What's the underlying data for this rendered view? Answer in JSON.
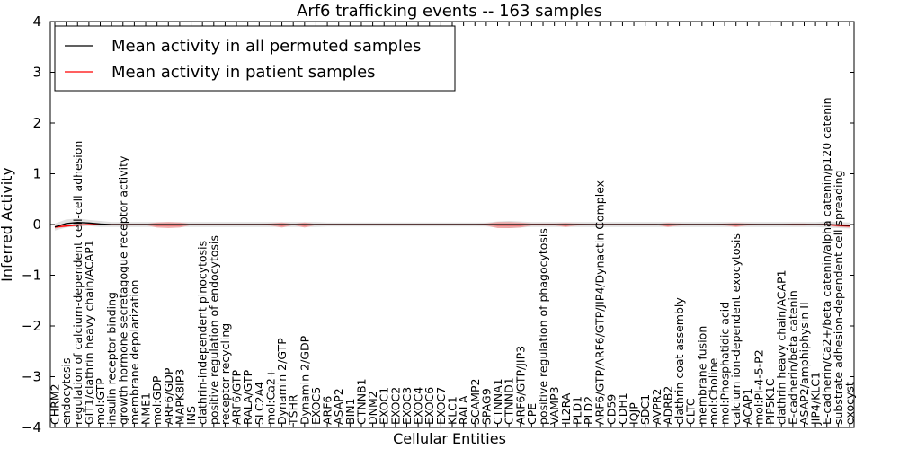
{
  "chart_data": {
    "type": "line",
    "title": "Arf6 trafficking events -- 163 samples",
    "xlabel": "Cellular Entities",
    "ylabel": "Inferred Activity",
    "ylim": [
      -4,
      4
    ],
    "yticks": [
      -4,
      -3,
      -2,
      -1,
      0,
      1,
      2,
      3,
      4
    ],
    "grid": false,
    "legend_position": "top-left",
    "categories": [
      "CHRM2",
      "endocytosis",
      "regulation of calcium-dependent cell-cell adhesion",
      "GIT1/clathrin heavy chain/ACAP1",
      "mol:GTP",
      "insulin receptor binding",
      "growth hormone secretagogue receptor activity",
      "membrane depolarization",
      "NME1",
      "mol:GDP",
      "ARF6/GDP",
      "MAPK8IP3",
      "INS",
      "clathrin-independent pinocytosis",
      "positive regulation of endocytosis",
      "receptor recycling",
      "ARF6/GTP",
      "RALA/GTP",
      "SLC2A4",
      "mol:Ca2+",
      "Dynamin 2/GTP",
      "TSHR",
      "Dynamin 2/GDP",
      "EXOC5",
      "ARF6",
      "ASAP2",
      "BIN1",
      "CTNNB1",
      "DNM2",
      "EXOC1",
      "EXOC2",
      "EXOC3",
      "EXOC4",
      "EXOC6",
      "EXOC7",
      "KLC1",
      "RALA",
      "SCAMP2",
      "SPAG9",
      "CTNNA1",
      "CTNND1",
      "ARF6/GTP/JIP3",
      "CPE",
      "positive regulation of phagocytosis",
      "VAMP3",
      "IL2RA",
      "PLD1",
      "PLD2",
      "ARF6/GTP/ARF6/GTP/JIP4/Dynactin Complex",
      "CD59",
      "CDH1",
      "IQJP",
      "SDC1",
      "AVPR2",
      "ADRB2",
      "clathrin coat assembly",
      "CLTC",
      "membrane fusion",
      "mol:Choline",
      "mol:Phosphatidic acid",
      "calcium ion-dependent exocytosis",
      "ACAP1",
      "mol:PI-4-5-P2",
      "PIP5K1C",
      "clathrin heavy chain/ACAP1",
      "E-cadherin/beta catenin",
      "ASAP2/amphiphysin II",
      "JIP4/KLC1",
      "E-cadherin/Ca2+/beta catenin/alpha catenin/p120 catenin",
      "substrate adhesion-dependent cell spreading",
      "exocyst"
    ],
    "series": [
      {
        "name": "Mean activity in all permuted samples",
        "color": "#000000",
        "values": [
          -0.05,
          0.02,
          0.04,
          0.03,
          0.01,
          0.0,
          0.0,
          0.0,
          0.0,
          0.0,
          0.0,
          0.0,
          0.0,
          0.0,
          0.0,
          0.0,
          0.0,
          0.0,
          0.0,
          0.0,
          0.0,
          0.0,
          0.0,
          0.0,
          0.0,
          0.0,
          0.0,
          0.0,
          0.0,
          0.0,
          0.0,
          0.0,
          0.0,
          0.0,
          0.0,
          0.0,
          0.0,
          0.0,
          0.0,
          0.0,
          0.0,
          0.0,
          0.0,
          0.0,
          0.0,
          0.0,
          0.0,
          0.0,
          0.0,
          0.0,
          0.0,
          0.0,
          0.0,
          0.0,
          0.0,
          0.0,
          0.0,
          0.0,
          0.0,
          0.0,
          0.0,
          0.0,
          0.0,
          0.0,
          0.0,
          0.0,
          0.0,
          0.0,
          0.0,
          -0.01,
          -0.02
        ],
        "band": [
          0.07,
          0.08,
          0.08,
          0.06,
          0.06,
          0.05,
          0.05,
          0.05,
          0.05,
          0.05,
          0.05,
          0.05,
          0.05,
          0.05,
          0.05,
          0.05,
          0.05,
          0.05,
          0.05,
          0.05,
          0.05,
          0.05,
          0.05,
          0.05,
          0.04,
          0.04,
          0.04,
          0.04,
          0.04,
          0.04,
          0.04,
          0.04,
          0.04,
          0.04,
          0.04,
          0.04,
          0.04,
          0.04,
          0.04,
          0.06,
          0.07,
          0.06,
          0.05,
          0.05,
          0.05,
          0.05,
          0.05,
          0.05,
          0.05,
          0.05,
          0.05,
          0.05,
          0.05,
          0.05,
          0.05,
          0.05,
          0.05,
          0.05,
          0.05,
          0.05,
          0.05,
          0.05,
          0.05,
          0.05,
          0.05,
          0.05,
          0.05,
          0.05,
          0.06,
          0.06,
          0.06
        ]
      },
      {
        "name": "Mean activity in patient samples",
        "color": "#ff0000",
        "values": [
          -0.05,
          -0.03,
          -0.01,
          0.0,
          0.0,
          0.0,
          0.0,
          0.0,
          0.0,
          -0.01,
          -0.01,
          -0.01,
          0.0,
          0.0,
          0.0,
          0.0,
          0.0,
          0.0,
          0.0,
          0.0,
          -0.01,
          0.0,
          -0.01,
          0.0,
          0.0,
          0.0,
          0.0,
          0.0,
          0.0,
          0.0,
          0.0,
          0.0,
          0.0,
          0.0,
          0.0,
          0.0,
          0.0,
          0.0,
          0.0,
          -0.01,
          -0.01,
          -0.01,
          0.0,
          0.0,
          0.0,
          -0.01,
          0.0,
          0.0,
          0.0,
          0.0,
          0.0,
          0.0,
          0.0,
          0.0,
          -0.01,
          0.0,
          0.0,
          0.0,
          0.0,
          0.0,
          -0.01,
          0.0,
          0.0,
          0.0,
          0.0,
          0.0,
          0.0,
          0.0,
          0.0,
          -0.02,
          -0.03
        ],
        "band": [
          0.03,
          0.02,
          0.02,
          0.01,
          0.01,
          0.01,
          0.01,
          0.01,
          0.01,
          0.05,
          0.06,
          0.05,
          0.01,
          0.01,
          0.01,
          0.01,
          0.01,
          0.01,
          0.01,
          0.02,
          0.05,
          0.01,
          0.05,
          0.01,
          0.01,
          0.01,
          0.01,
          0.01,
          0.01,
          0.01,
          0.01,
          0.01,
          0.01,
          0.01,
          0.01,
          0.01,
          0.01,
          0.01,
          0.02,
          0.06,
          0.06,
          0.05,
          0.02,
          0.02,
          0.02,
          0.04,
          0.02,
          0.01,
          0.01,
          0.01,
          0.01,
          0.01,
          0.01,
          0.01,
          0.04,
          0.02,
          0.01,
          0.01,
          0.01,
          0.02,
          0.04,
          0.02,
          0.01,
          0.01,
          0.01,
          0.02,
          0.02,
          0.01,
          0.02,
          0.03,
          0.03
        ]
      }
    ]
  }
}
